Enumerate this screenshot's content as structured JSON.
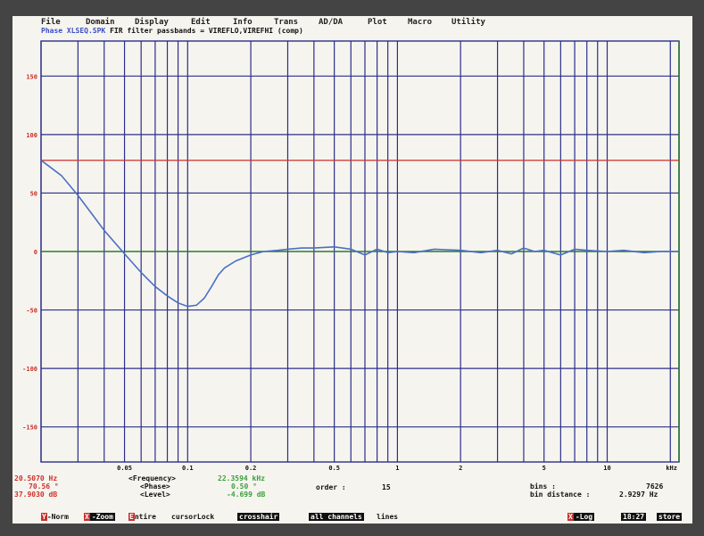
{
  "menu": [
    "File",
    "Domain",
    "Display",
    "Edit",
    "Info",
    "Trans",
    "AD/DA",
    "Plot",
    "Macro",
    "Utility"
  ],
  "subtitle": {
    "tag": "Phase XLSEQ.SPK",
    "text": " FIR filter passbands = VIREFLO,VIREFHI (comp)"
  },
  "axis": {
    "y_ticks": [
      "150",
      "100",
      "50",
      "0",
      "-50",
      "-100",
      "-150"
    ],
    "x_ticks": [
      "0.05",
      "0.1",
      "0.2",
      "0.5",
      "1",
      "2",
      "5",
      "10",
      "kHz"
    ]
  },
  "readouts": {
    "cursor_freq": "20.5070 Hz",
    "cursor_phase": "70.56 °",
    "cursor_level": "37.9030 dB",
    "label_freq": "<Frequency>",
    "label_phase": "<Phase>",
    "label_level": "<Level>",
    "right_freq": "22.3594 kHz",
    "right_phase": "0.50 °",
    "right_level": "-4.699 dB",
    "order_label": "order  :",
    "order_value": "15",
    "bins_label": "bins        :",
    "bins_value": "7626",
    "bin_distance_label": "bin distance :",
    "bin_distance_value": "2.9297 Hz"
  },
  "fkeys": {
    "norm": {
      "key": "Y",
      "label": "-Norm"
    },
    "zoom": {
      "key": "X",
      "label": "-Zoom"
    },
    "entire": {
      "key": "E",
      "label": "ntire"
    },
    "cursor_lock": "cursorLock",
    "crosshair": "crosshair",
    "all_channels": "all channels",
    "lines": "lines",
    "xlog": {
      "key": "X",
      "label": "-Log"
    },
    "time": "18:27",
    "store": "store"
  },
  "colors": {
    "grid": "#2b2f8a",
    "trace": "#4a6fc4",
    "reference": "#d0302a",
    "zero_line": "#2d7a2d",
    "background": "#f6f4ef"
  },
  "chart_data": {
    "type": "line",
    "x_unit": "kHz",
    "x_scale": "log",
    "ylim": [
      -180,
      180
    ],
    "reference_line": 78,
    "series": [
      {
        "x": [
          0.02,
          0.025,
          0.03,
          0.035,
          0.04,
          0.05,
          0.06,
          0.07,
          0.08,
          0.09,
          0.1,
          0.11,
          0.12,
          0.13,
          0.14,
          0.15,
          0.17,
          0.2,
          0.23,
          0.27,
          0.3,
          0.35,
          0.4,
          0.5,
          0.6,
          0.7,
          0.8,
          0.9,
          1,
          1.2,
          1.5,
          2,
          2.5,
          3,
          3.5,
          4,
          4.5,
          5,
          6,
          7,
          8,
          10,
          12,
          15,
          18,
          22
        ],
        "y": [
          78,
          65,
          48,
          32,
          18,
          -2,
          -18,
          -30,
          -38,
          -44,
          -47,
          -46,
          -40,
          -30,
          -20,
          -14,
          -8,
          -3,
          0,
          1,
          2,
          3,
          3,
          4,
          2,
          -3,
          2,
          -1,
          0,
          -1,
          2,
          1,
          -1,
          1,
          -2,
          3,
          0,
          1,
          -3,
          2,
          1,
          0,
          1,
          -1,
          0,
          0
        ]
      }
    ]
  }
}
